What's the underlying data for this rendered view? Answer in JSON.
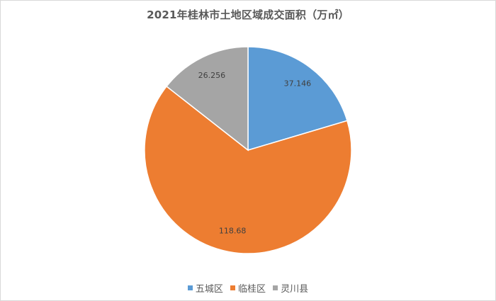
{
  "chart_data": {
    "type": "pie",
    "title": "2021年桂林市土地区域成交面积（万㎡）",
    "categories": [
      "五城区",
      "临桂区",
      "灵川县"
    ],
    "values": [
      37.146,
      118.68,
      26.256
    ],
    "value_labels": [
      "37.146",
      "118.68",
      "26.256"
    ],
    "colors": [
      "#5b9bd5",
      "#ed7d31",
      "#a5a5a5"
    ],
    "start_angle_deg": 0,
    "direction": "clockwise",
    "legend_position": "bottom"
  }
}
